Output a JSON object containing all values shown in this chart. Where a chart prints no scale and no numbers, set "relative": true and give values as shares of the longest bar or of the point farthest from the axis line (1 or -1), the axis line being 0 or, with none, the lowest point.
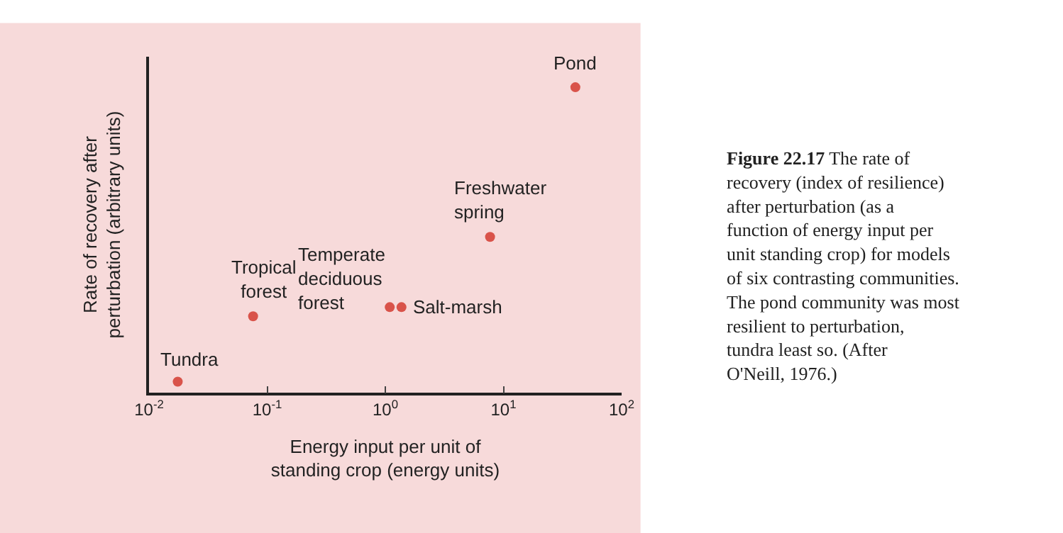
{
  "chart_data": {
    "type": "scatter",
    "xlabel": "Energy input per unit of standing crop (energy units)",
    "ylabel": "Rate of recovery after perturbation (arbitrary units)",
    "relative": true,
    "log": "x",
    "tick_labels": "x",
    "grid": false,
    "marker": "circle",
    "xlim": [
      0.01,
      100
    ],
    "xticks": [
      {
        "value": 0.01,
        "label": "10$^{-2}$"
      },
      {
        "value": 0.1,
        "label": "10$^{-1}$"
      },
      {
        "value": 1,
        "label": "10$^{0}$"
      },
      {
        "value": 10,
        "label": "10$^{1}$"
      },
      {
        "value": 100,
        "label": "10$^{2}$"
      }
    ],
    "series": [
      {
        "color": "#d9534a",
        "x": [
          0.0175,
          0.076,
          1.09,
          1.37,
          7.7,
          40.6
        ],
        "values": [
          0.036,
          0.25,
          0.28,
          0.28,
          0.51,
          1
        ]
      }
    ],
    "annotations": [
      {
        "text": "Tundra",
        "x": 0.0175,
        "y": 0.036
      },
      {
        "text": "Tropical forest",
        "x": 0.076,
        "y": 0.25
      },
      {
        "text": "Temperate deciduous forest",
        "x": 1.09,
        "y": 0.28
      },
      {
        "text": "Salt-marsh",
        "x": 1.37,
        "y": 0.28
      },
      {
        "text": "Freshwater spring",
        "x": 7.7,
        "y": 0.51
      },
      {
        "text": "Pond",
        "x": 40.6,
        "y": 1
      },
      "Figure 22.17",
      "The rate of recovery (index of resilience) after perturbation (as a function of energy input per unit standing crop) for models of six contrasting communities. The pond community was most resilient to perturbation, tundra least so. (After O'Neill, 1976.)"
    ]
  }
}
